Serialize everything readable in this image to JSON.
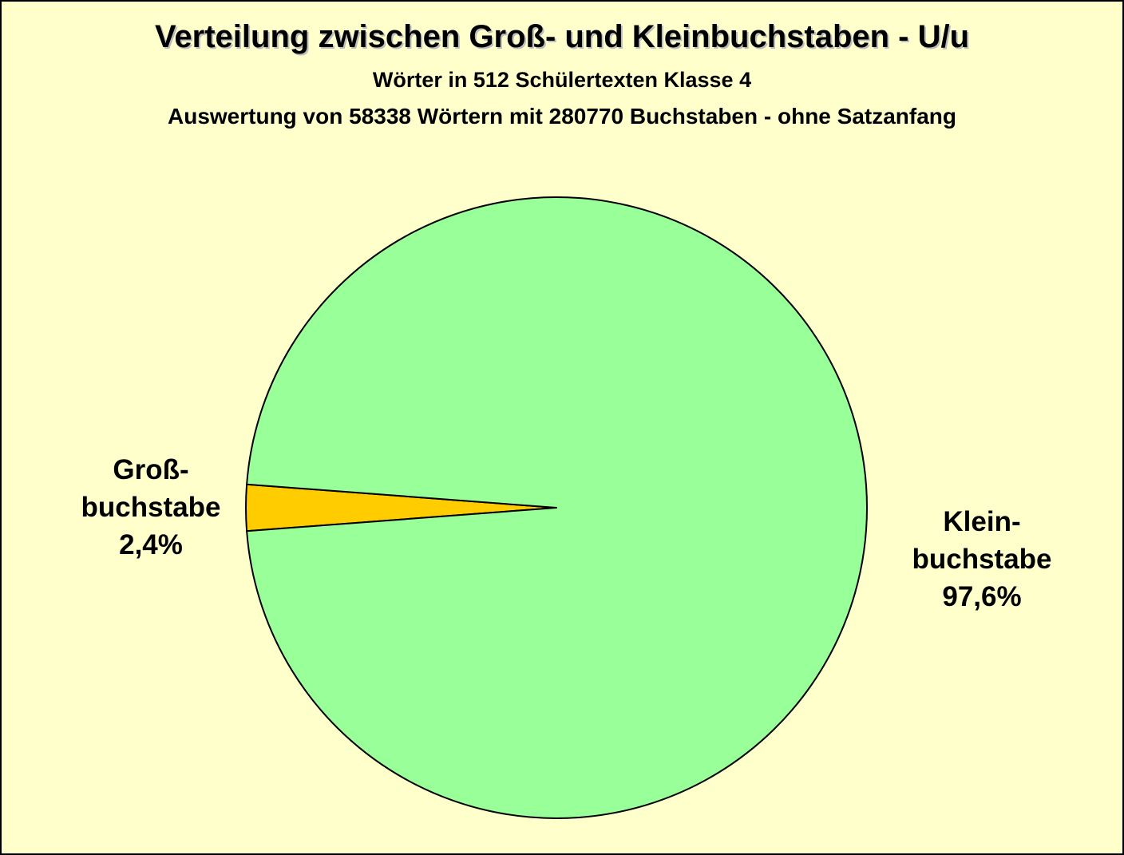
{
  "chart_data": {
    "type": "pie",
    "title": "Verteilung zwischen Groß- und  Kleinbuchstaben - U/u",
    "subtitles": [
      "Wörter in 512 Schülertexten Klasse 4",
      "Auswertung von 58338 Wörtern mit 280770 Buchstaben - ohne Satzanfang"
    ],
    "slices": [
      {
        "label_lines": [
          "Groß-",
          "buchstabe"
        ],
        "value_label": "2,4%",
        "value": 2.4,
        "color": "#ffcc00"
      },
      {
        "label_lines": [
          "Klein-",
          "buchstabe"
        ],
        "value_label": "97,6%",
        "value": 97.6,
        "color": "#99ff99"
      }
    ],
    "background": "#ffffcc",
    "legend": "none"
  }
}
